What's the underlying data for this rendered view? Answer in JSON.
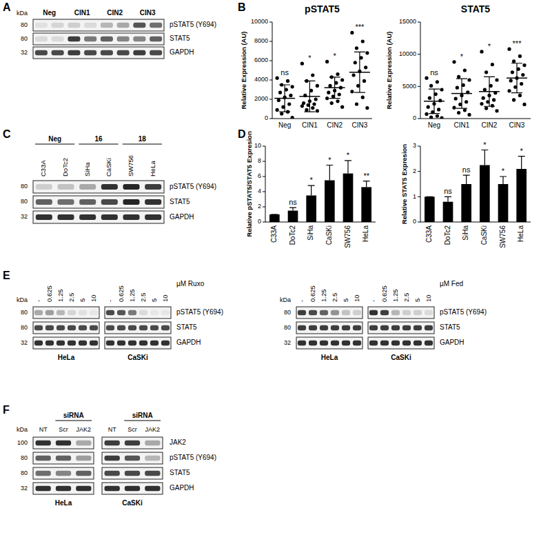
{
  "panel_labels": [
    "A",
    "B",
    "C",
    "D",
    "E",
    "F"
  ],
  "chart_data": [
    {
      "type": "dot",
      "title": "pSTAT5",
      "y_label": "Relative Expression (AU)",
      "categories": [
        "Neg",
        "CIN1",
        "CIN2",
        "CIN3"
      ],
      "points": [
        [
          4200,
          3900,
          3500,
          3300,
          3000,
          2700,
          2400,
          2200,
          1900,
          1500,
          1200,
          900,
          700,
          500,
          100
        ],
        [
          5700,
          4500,
          3900,
          3400,
          2900,
          2400,
          2000,
          1800,
          1600,
          1500,
          1400,
          1300,
          1100,
          900,
          800
        ],
        [
          5900,
          4600,
          4300,
          4000,
          3700,
          3400,
          3200,
          2900,
          2700,
          2500,
          2300,
          2100,
          1800,
          1600,
          1200
        ],
        [
          8900,
          8000,
          7300,
          6800,
          6300,
          5800,
          5300,
          4900,
          4500,
          3900,
          3400,
          2800,
          2200,
          1500,
          1100
        ]
      ],
      "values": [
        2100,
        2300,
        3200,
        4800
      ],
      "errors": [
        1400,
        1600,
        1100,
        2100
      ],
      "annotations": [
        "ns",
        "*",
        "*",
        "***"
      ],
      "color": "#000000",
      "ylim": [
        0,
        10000
      ],
      "yticks": [
        0,
        2000,
        4000,
        6000,
        8000,
        10000
      ]
    },
    {
      "type": "dot",
      "title": "STAT5",
      "y_label": "Relative Expression (AU)",
      "categories": [
        "Neg",
        "CIN1",
        "CIN2",
        "CIN3"
      ],
      "points": [
        [
          6300,
          5700,
          5100,
          4500,
          3800,
          3200,
          2800,
          2300,
          1800,
          1400,
          1000,
          700,
          400,
          200,
          100
        ],
        [
          8800,
          7500,
          6500,
          6000,
          5200,
          4800,
          4100,
          3600,
          3100,
          2600,
          2200,
          1700,
          1300,
          900,
          600
        ],
        [
          10400,
          8400,
          7200,
          6000,
          5100,
          4500,
          4000,
          3600,
          3200,
          2900,
          2600,
          2300,
          2000,
          1600,
          1200
        ],
        [
          10800,
          9700,
          8900,
          8300,
          7700,
          7200,
          6800,
          6300,
          5900,
          5400,
          4900,
          4300,
          3600,
          2900,
          2200
        ]
      ],
      "values": [
        2700,
        3900,
        4200,
        6300
      ],
      "errors": [
        1900,
        2300,
        2300,
        2300
      ],
      "annotations": [
        "ns",
        "*",
        "*",
        "***"
      ],
      "color": "#000000",
      "ylim": [
        0,
        15000
      ],
      "yticks": [
        0,
        5000,
        10000,
        15000
      ]
    },
    {
      "type": "bar",
      "y_label": "Relative pSTAT5/STAT5 Expresion",
      "categories": [
        "C33A",
        "DoTc2",
        "SiHa",
        "CaSKi",
        "SW756",
        "HeLa"
      ],
      "values": [
        1,
        1.5,
        3.5,
        5.5,
        6.4,
        4.6
      ],
      "errors": [
        0,
        0.4,
        1.3,
        2.0,
        1.7,
        0.8
      ],
      "annotations": [
        null,
        "ns",
        "*",
        "*",
        "*",
        "**"
      ],
      "color": "#000000",
      "ylim": [
        0,
        10
      ],
      "yticks": [
        0,
        2,
        4,
        6,
        8,
        10
      ]
    },
    {
      "type": "bar",
      "y_label": "Relative STAT5 Expresion",
      "categories": [
        "C33A",
        "DoTc2",
        "SiHa",
        "CaSKi",
        "SW756",
        "HeLa"
      ],
      "values": [
        1,
        0.8,
        1.5,
        2.25,
        1.5,
        2.1
      ],
      "errors": [
        0,
        0.2,
        0.35,
        0.6,
        0.3,
        0.5
      ],
      "annotations": [
        null,
        "ns",
        "ns",
        "*",
        "*",
        "*"
      ],
      "color": "#000000",
      "ylim": [
        0,
        3
      ],
      "yticks": [
        0,
        1,
        2,
        3
      ]
    }
  ],
  "blots": [
    {
      "kda_label": "kDa",
      "groups": [
        {
          "label": "Neg"
        },
        {
          "label": "CIN1"
        },
        {
          "label": "CIN2"
        },
        {
          "label": "CIN3"
        }
      ],
      "rows": [
        {
          "label": "pSTAT5 (Y694)",
          "kda": 80
        },
        {
          "label": "STAT5",
          "kda": 80
        },
        {
          "label": "GAPDH",
          "kda": 32
        }
      ],
      "bands": [
        [
          0.08,
          0.12,
          0.15,
          0.1,
          0.25,
          0.3,
          0.65,
          0.55
        ],
        [
          0.1,
          0.1,
          0.75,
          0.5,
          0.6,
          0.45,
          0.45,
          0.6
        ],
        [
          0.7,
          0.7,
          0.75,
          0.7,
          0.7,
          0.7,
          0.75,
          0.7
        ]
      ]
    },
    {
      "groups": [
        {
          "label": "Neg",
          "lanes": [
            "C33A",
            "DoTc2"
          ]
        },
        {
          "label": "16",
          "lanes": [
            "SiHa",
            "CaSKi"
          ]
        },
        {
          "label": "18",
          "lanes": [
            "SW756",
            "HeLa"
          ]
        }
      ],
      "rows": [
        {
          "label": "pSTAT5 (Y694)",
          "kda": 80
        },
        {
          "label": "STAT5",
          "kda": 80
        },
        {
          "label": "GAPDH",
          "kda": 32
        }
      ],
      "bands": [
        [
          0.15,
          0.2,
          0.3,
          0.8,
          0.85,
          0.75
        ],
        [
          0.6,
          0.55,
          0.6,
          0.7,
          0.85,
          0.8
        ],
        [
          0.8,
          0.8,
          0.8,
          0.8,
          0.8,
          0.8
        ]
      ]
    },
    {
      "kda_label": "kDa",
      "unit": "µM Ruxo",
      "groups": [
        {
          "lanes": [
            "-",
            "0.625",
            "1.25",
            "2.5",
            "5",
            "10"
          ]
        }
      ],
      "rows": [
        {
          "label": "pSTAT5 (Y694)",
          "kda": 80
        },
        {
          "label": "STAT5",
          "kda": 80
        },
        {
          "label": "GAPDH",
          "kda": 32
        }
      ],
      "cell_lines": [
        {
          "name": "HeLa",
          "bands": [
            [
              0.3,
              0.35,
              0.25,
              0.12,
              0.08,
              0.05
            ],
            [
              0.7,
              0.7,
              0.7,
              0.7,
              0.7,
              0.7
            ],
            [
              0.8,
              0.8,
              0.8,
              0.8,
              0.8,
              0.8
            ]
          ]
        },
        {
          "name": "CaSKi",
          "bands": [
            [
              0.7,
              0.65,
              0.5,
              0.1,
              0.05,
              0.05
            ],
            [
              0.7,
              0.7,
              0.7,
              0.7,
              0.7,
              0.7
            ],
            [
              0.8,
              0.8,
              0.8,
              0.8,
              0.8,
              0.8
            ]
          ]
        }
      ]
    },
    {
      "kda_label": "kDa",
      "unit": "µM Fed",
      "groups": [
        {
          "lanes": [
            "-",
            "0.625",
            "1.25",
            "2.5",
            "5",
            "10"
          ]
        }
      ],
      "rows": [
        {
          "label": "pSTAT5 (Y694)",
          "kda": 80
        },
        {
          "label": "STAT5",
          "kda": 80
        },
        {
          "label": "GAPDH",
          "kda": 32
        }
      ],
      "cell_lines": [
        {
          "name": "HeLa",
          "bands": [
            [
              0.75,
              0.7,
              0.6,
              0.4,
              0.2,
              0.15
            ],
            [
              0.75,
              0.75,
              0.75,
              0.75,
              0.75,
              0.75
            ],
            [
              0.8,
              0.8,
              0.8,
              0.8,
              0.8,
              0.8
            ]
          ]
        },
        {
          "name": "CaSKi",
          "bands": [
            [
              0.8,
              0.75,
              0.25,
              0.15,
              0.15,
              0.1
            ],
            [
              0.75,
              0.75,
              0.75,
              0.75,
              0.75,
              0.75
            ],
            [
              0.8,
              0.8,
              0.8,
              0.8,
              0.8,
              0.8
            ]
          ]
        }
      ]
    },
    {
      "kda_label": "kDa",
      "groups": [
        {
          "lanes": [
            "NT"
          ]
        },
        {
          "label": "siRNA",
          "lanes": [
            "Scr",
            "JAK2"
          ]
        }
      ],
      "rows": [
        {
          "label": "JAK2",
          "kda": 100
        },
        {
          "label": "pSTAT5 (Y694)",
          "kda": 80
        },
        {
          "label": "STAT5",
          "kda": 80
        },
        {
          "label": "GAPDH",
          "kda": 32
        }
      ],
      "cell_lines": [
        {
          "name": "HeLa",
          "bands": [
            [
              0.8,
              0.8,
              0.3
            ],
            [
              0.6,
              0.6,
              0.35
            ],
            [
              0.55,
              0.45,
              0.6
            ],
            [
              0.8,
              0.8,
              0.8
            ]
          ]
        },
        {
          "name": "CaSKi",
          "bands": [
            [
              0.75,
              0.75,
              0.3
            ],
            [
              0.75,
              0.65,
              0.25
            ],
            [
              0.7,
              0.7,
              0.7
            ],
            [
              0.8,
              0.8,
              0.8
            ]
          ]
        }
      ]
    }
  ]
}
